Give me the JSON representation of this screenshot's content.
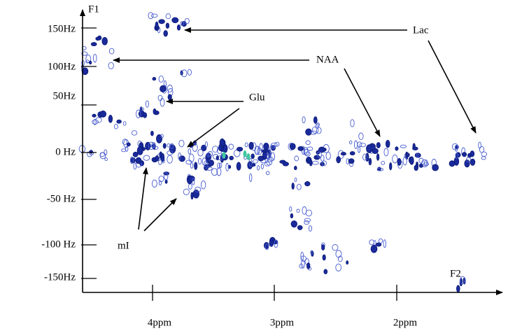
{
  "axes": {
    "y_label": "F1",
    "x_label": "F2",
    "y_ticks": [
      "150Hz",
      "100Hz",
      "50Hz",
      "0 Hz",
      "-50 Hz",
      "-100 Hz",
      "-150Hz"
    ],
    "x_ticks": [
      "4ppm",
      "3ppm",
      "2ppm"
    ]
  },
  "annotations": [
    "Lac",
    "NAA",
    "Glu",
    "mI"
  ]
}
